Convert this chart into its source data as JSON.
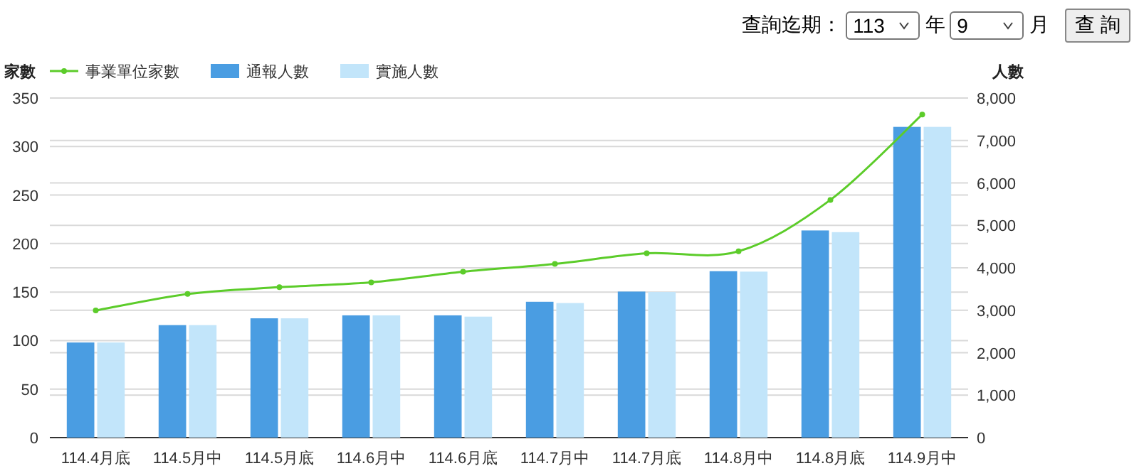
{
  "chart_data": {
    "type": "bar",
    "ylabel": "家數",
    "y2label": "人數",
    "categories": [
      "114.4月底",
      "114.5月中",
      "114.5月底",
      "114.6月中",
      "114.6月底",
      "114.7月中",
      "114.7月底",
      "114.8月中",
      "114.8月底",
      "114.9月中"
    ],
    "series": [
      {
        "name": "事業單位家數",
        "type": "line",
        "color": "#5ccc2a",
        "values": [
          131,
          148,
          155,
          160,
          171,
          179,
          190,
          192,
          245,
          333
        ]
      },
      {
        "name": "通報人數",
        "axis": "y2",
        "color": "#4a9de2",
        "values": [
          2240,
          2650,
          2810,
          2880,
          2880,
          3200,
          3440,
          3920,
          4880,
          7320
        ]
      },
      {
        "name": "實施人數",
        "axis": "y2",
        "color": "#c2e5fa",
        "values": [
          2240,
          2650,
          2810,
          2880,
          2850,
          3170,
          3430,
          3910,
          4840,
          7320
        ]
      }
    ],
    "ylim": [
      0,
      350
    ],
    "yticks": [
      0,
      50,
      100,
      150,
      200,
      250,
      300,
      350
    ],
    "y2lim": [
      0,
      8000
    ],
    "y2ticks": [
      0,
      {
        "value": 1000,
        "label": "1,000"
      },
      {
        "value": 2000,
        "label": "2,000"
      },
      {
        "value": 3000,
        "label": "3,000"
      },
      {
        "value": 4000,
        "label": "4,000"
      },
      {
        "value": 5000,
        "label": "5,000"
      },
      {
        "value": 6000,
        "label": "6,000"
      },
      {
        "value": 7000,
        "label": "7,000"
      },
      {
        "value": 8000,
        "label": "8,000"
      }
    ],
    "grid": true,
    "legend": "top left",
    "marker": "circle",
    "line_style": "solid",
    "annotations": [
      "查詢迄期：",
      "113",
      "年",
      "9",
      "月",
      "查 詢"
    ]
  }
}
